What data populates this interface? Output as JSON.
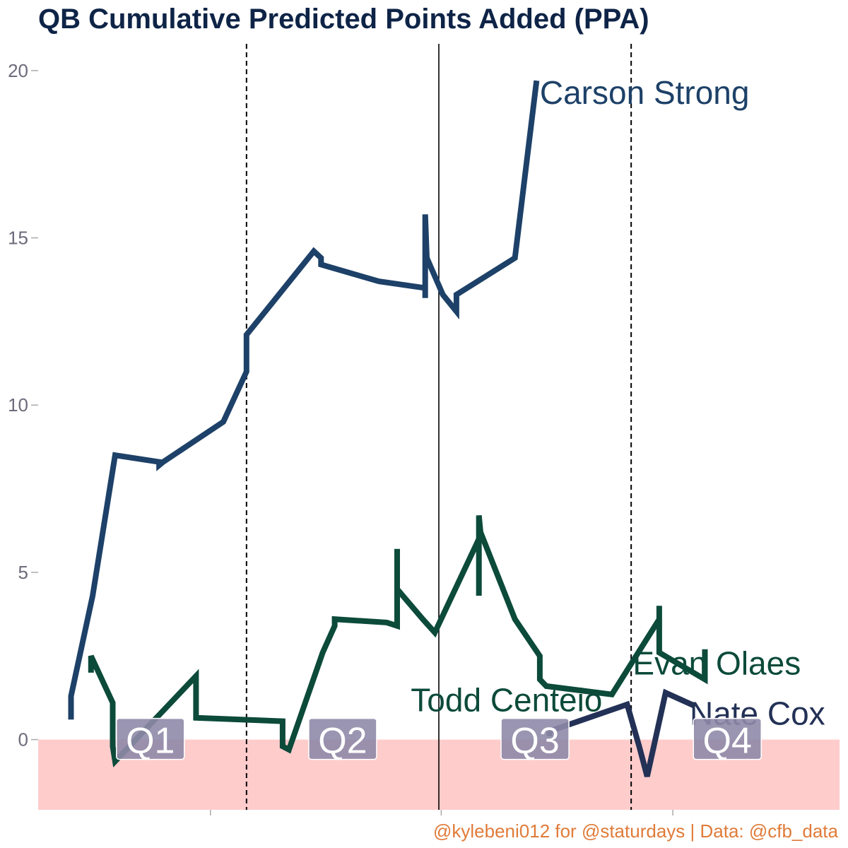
{
  "chart_data": {
    "type": "line",
    "title": "QB Cumulative Predicted Points Added (PPA)",
    "caption": "@kylebeni012 for @staturdays | Data: @cfb_data",
    "xlabel": "",
    "ylabel": "",
    "ylim": [
      -2.1,
      20.8
    ],
    "xlim": [
      0,
      100
    ],
    "yticks": [
      0,
      5,
      10,
      15,
      20
    ],
    "grid": false,
    "negative_band": {
      "from": -2.1,
      "to": 0,
      "color": "#ffcccc"
    },
    "quarter_lines": [
      {
        "x": 26,
        "style": "dashed"
      },
      {
        "x": 50,
        "style": "solid"
      },
      {
        "x": 74,
        "style": "dashed"
      }
    ],
    "quarters": [
      {
        "label": "Q1",
        "x": 14,
        "y": 0
      },
      {
        "label": "Q2",
        "x": 38,
        "y": 0
      },
      {
        "label": "Q3",
        "x": 62,
        "y": 0
      },
      {
        "label": "Q4",
        "x": 86,
        "y": 0
      }
    ],
    "series": [
      {
        "name": "Carson Strong",
        "color": "#1d4168",
        "label_at": {
          "x": 62.6,
          "y": 19.0
        },
        "points": [
          [
            4.1,
            0.6
          ],
          [
            4.1,
            1.3
          ],
          [
            6.8,
            4.3
          ],
          [
            9.6,
            8.5
          ],
          [
            15.1,
            8.3
          ],
          [
            15.1,
            8.2
          ],
          [
            15.6,
            8.3
          ],
          [
            23.1,
            9.5
          ],
          [
            26.0,
            11.0
          ],
          [
            26.0,
            12.1
          ],
          [
            34.4,
            14.6
          ],
          [
            35.3,
            14.4
          ],
          [
            35.3,
            14.2
          ],
          [
            42.5,
            13.7
          ],
          [
            48.3,
            13.5
          ],
          [
            48.3,
            13.2
          ],
          [
            48.3,
            15.7
          ],
          [
            48.5,
            14.4
          ],
          [
            50.5,
            13.3
          ],
          [
            52.2,
            12.8
          ],
          [
            52.2,
            13.3
          ],
          [
            59.5,
            14.4
          ],
          [
            62.2,
            19.7
          ]
        ]
      },
      {
        "name": "Evan Olaes",
        "color": "#0c4a3a",
        "label_at": {
          "x": 74.2,
          "y": 1.95
        },
        "points": [
          [
            6.6,
            2.0
          ],
          [
            6.6,
            2.5
          ],
          [
            9.3,
            1.1
          ],
          [
            9.3,
            -0.2
          ],
          [
            9.6,
            -0.65
          ],
          [
            19.7,
            1.9
          ],
          [
            19.7,
            0.65
          ],
          [
            30.5,
            0.55
          ],
          [
            30.5,
            -0.2
          ],
          [
            31.3,
            -0.3
          ],
          [
            35.5,
            2.6
          ],
          [
            37.0,
            3.4
          ],
          [
            37.0,
            3.6
          ],
          [
            43.5,
            3.5
          ],
          [
            44.8,
            3.4
          ],
          [
            44.8,
            5.7
          ],
          [
            44.8,
            4.5
          ],
          [
            48.0,
            3.6
          ],
          [
            49.5,
            3.2
          ],
          [
            55.0,
            6.0
          ],
          [
            55.0,
            4.3
          ],
          [
            55.0,
            6.7
          ],
          [
            55.2,
            6.2
          ],
          [
            59.5,
            3.6
          ],
          [
            62.6,
            2.5
          ],
          [
            62.6,
            1.8
          ],
          [
            63.4,
            1.6
          ],
          [
            71.6,
            1.35
          ],
          [
            77.5,
            3.6
          ],
          [
            77.5,
            4.0
          ],
          [
            77.5,
            2.6
          ],
          [
            83.2,
            1.8
          ],
          [
            83.2,
            2.7
          ]
        ]
      },
      {
        "name": "Todd Centeio",
        "color": "#0c4a3a",
        "label_at": {
          "x": 46.5,
          "y": 0.85
        },
        "points": [
          [
            63.8,
            0.1
          ],
          [
            63.8,
            0.25
          ]
        ]
      },
      {
        "name": "Nate Cox",
        "color": "#233156",
        "label_at": {
          "x": 81.3,
          "y": 0.45
        },
        "points": [
          [
            63.8,
            0.25
          ],
          [
            73.5,
            1.05
          ],
          [
            75.0,
            -0.2
          ],
          [
            76.0,
            -1.1
          ],
          [
            78.3,
            1.4
          ],
          [
            82.0,
            1.0
          ]
        ]
      }
    ]
  }
}
